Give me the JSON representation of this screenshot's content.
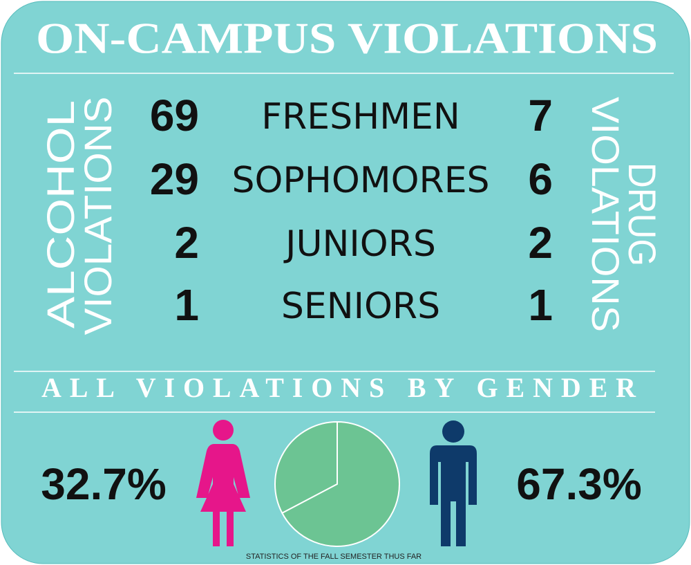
{
  "title": "ON-CAMPUS VIOLATIONS",
  "left_label": [
    "ALCOHOL",
    "VIOLATIONS"
  ],
  "right_label": [
    "DRUG",
    "VIOLATIONS"
  ],
  "rows": [
    {
      "class": "FRESHMEN",
      "alcohol": 69,
      "drug": 7
    },
    {
      "class": "SOPHOMORES",
      "alcohol": 29,
      "drug": 6
    },
    {
      "class": "JUNIORS",
      "alcohol": 2,
      "drug": 2
    },
    {
      "class": "SENIORS",
      "alcohol": 1,
      "drug": 1
    }
  ],
  "gender": {
    "title": "ALL VIOLATIONS BY GENDER",
    "type": "pie",
    "values": [
      32.7,
      67.3
    ],
    "value_labels": [
      "32.7%",
      "67.3%"
    ],
    "colors": [
      "#6cc493",
      "#6cc493"
    ]
  },
  "footnote": "STATISTICS OF THE FALL SEMESTER THUS FAR"
}
